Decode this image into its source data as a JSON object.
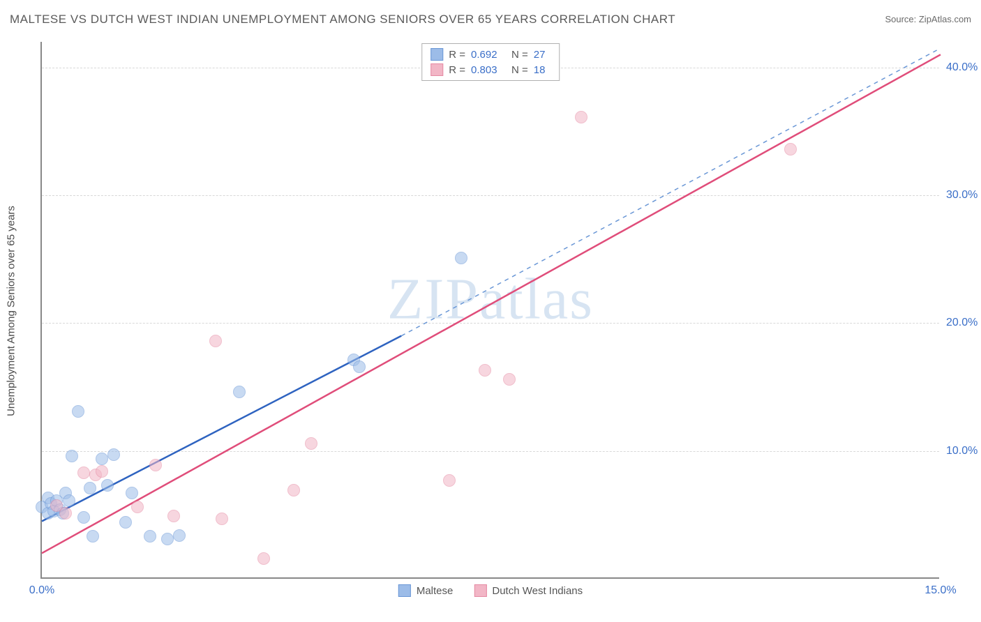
{
  "title": "MALTESE VS DUTCH WEST INDIAN UNEMPLOYMENT AMONG SENIORS OVER 65 YEARS CORRELATION CHART",
  "source": "Source: ZipAtlas.com",
  "watermark": "ZIPatlas",
  "ylabel": "Unemployment Among Seniors over 65 years",
  "chart": {
    "type": "scatter-with-regression",
    "background_color": "#ffffff",
    "grid_color": "#d8d8d8",
    "axis_color": "#888888",
    "tick_label_color": "#3b6fc8",
    "tick_fontsize": 16,
    "title_fontsize": 17,
    "title_color": "#5a5a5a",
    "xlim": [
      0.0,
      15.0
    ],
    "ylim": [
      0.0,
      42.0
    ],
    "x_ticks": [
      0.0,
      15.0
    ],
    "y_ticks": [
      10.0,
      20.0,
      30.0,
      40.0
    ],
    "y_tick_labels": [
      "10.0%",
      "20.0%",
      "30.0%",
      "40.0%"
    ],
    "x_tick_labels": [
      "0.0%",
      "15.0%"
    ],
    "marker_radius": 9,
    "marker_opacity": 0.55,
    "series": [
      {
        "name": "Maltese",
        "label": "Maltese",
        "fill_color": "#9cbce8",
        "stroke_color": "#6a97d6",
        "line_color": "#2e63c0",
        "dash_color": "#6a97d6",
        "line_width": 2.5,
        "R": 0.692,
        "N": 27,
        "solid_line": {
          "x1": 0.0,
          "y1": 4.5,
          "x2": 6.0,
          "y2": 19.0
        },
        "dashed_line": {
          "x1": 6.0,
          "y1": 19.0,
          "x2": 15.0,
          "y2": 41.5
        },
        "points": [
          {
            "x": 0.0,
            "y": 5.5
          },
          {
            "x": 0.1,
            "y": 5.0
          },
          {
            "x": 0.1,
            "y": 6.2
          },
          {
            "x": 0.15,
            "y": 5.8
          },
          {
            "x": 0.2,
            "y": 5.2
          },
          {
            "x": 0.25,
            "y": 6.0
          },
          {
            "x": 0.3,
            "y": 5.3
          },
          {
            "x": 0.35,
            "y": 5.0
          },
          {
            "x": 0.4,
            "y": 6.6
          },
          {
            "x": 0.45,
            "y": 6.0
          },
          {
            "x": 0.5,
            "y": 9.5
          },
          {
            "x": 0.6,
            "y": 13.0
          },
          {
            "x": 0.7,
            "y": 4.7
          },
          {
            "x": 0.8,
            "y": 7.0
          },
          {
            "x": 0.85,
            "y": 3.2
          },
          {
            "x": 1.0,
            "y": 9.3
          },
          {
            "x": 1.1,
            "y": 7.2
          },
          {
            "x": 1.2,
            "y": 9.6
          },
          {
            "x": 1.4,
            "y": 4.3
          },
          {
            "x": 1.5,
            "y": 6.6
          },
          {
            "x": 1.8,
            "y": 3.2
          },
          {
            "x": 2.1,
            "y": 3.0
          },
          {
            "x": 2.3,
            "y": 3.3
          },
          {
            "x": 3.3,
            "y": 14.5
          },
          {
            "x": 5.2,
            "y": 17.0
          },
          {
            "x": 5.3,
            "y": 16.5
          },
          {
            "x": 7.0,
            "y": 25.0
          }
        ]
      },
      {
        "name": "Dutch West Indians",
        "label": "Dutch West Indians",
        "fill_color": "#f2b6c6",
        "stroke_color": "#e58aa3",
        "line_color": "#e04d7a",
        "dash_color": "#e58aa3",
        "line_width": 2.5,
        "R": 0.803,
        "N": 18,
        "solid_line": {
          "x1": 0.0,
          "y1": 2.0,
          "x2": 15.0,
          "y2": 41.0
        },
        "dashed_line": null,
        "points": [
          {
            "x": 0.25,
            "y": 5.6
          },
          {
            "x": 0.4,
            "y": 5.0
          },
          {
            "x": 0.7,
            "y": 8.2
          },
          {
            "x": 0.9,
            "y": 8.0
          },
          {
            "x": 1.0,
            "y": 8.3
          },
          {
            "x": 1.6,
            "y": 5.5
          },
          {
            "x": 1.9,
            "y": 8.8
          },
          {
            "x": 2.2,
            "y": 4.8
          },
          {
            "x": 2.9,
            "y": 18.5
          },
          {
            "x": 3.0,
            "y": 4.6
          },
          {
            "x": 3.7,
            "y": 1.5
          },
          {
            "x": 4.2,
            "y": 6.8
          },
          {
            "x": 4.5,
            "y": 10.5
          },
          {
            "x": 6.8,
            "y": 7.6
          },
          {
            "x": 7.4,
            "y": 16.2
          },
          {
            "x": 7.8,
            "y": 15.5
          },
          {
            "x": 9.0,
            "y": 36.0
          },
          {
            "x": 12.5,
            "y": 33.5
          }
        ]
      }
    ],
    "legend_top": {
      "border_color": "#b0b0b0",
      "rows": [
        {
          "swatch_fill": "#9cbce8",
          "swatch_border": "#6a97d6",
          "r_label": "R =",
          "r_value": "0.692",
          "n_label": "N =",
          "n_value": "27"
        },
        {
          "swatch_fill": "#f2b6c6",
          "swatch_border": "#e58aa3",
          "r_label": "R =",
          "r_value": "0.803",
          "n_label": "N =",
          "n_value": "18"
        }
      ]
    },
    "legend_bottom": [
      {
        "swatch_fill": "#9cbce8",
        "swatch_border": "#6a97d6",
        "label": "Maltese"
      },
      {
        "swatch_fill": "#f2b6c6",
        "swatch_border": "#e58aa3",
        "label": "Dutch West Indians"
      }
    ]
  }
}
